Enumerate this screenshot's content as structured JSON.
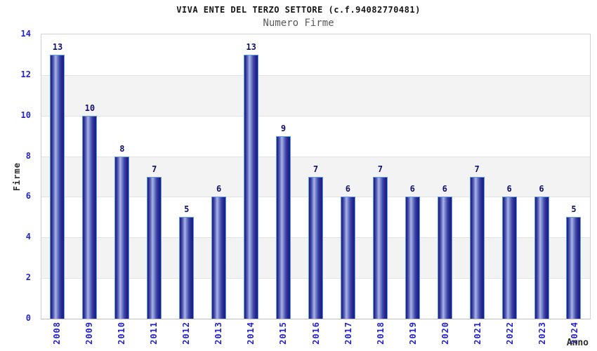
{
  "header": {
    "title": "VIVA ENTE DEL TERZO SETTORE (c.f.94082770481)",
    "subtitle": "Numero Firme"
  },
  "chart_data": {
    "type": "bar",
    "title": "VIVA ENTE DEL TERZO SETTORE (c.f.94082770481)",
    "subtitle": "Numero Firme",
    "categories": [
      "2008",
      "2009",
      "2010",
      "2011",
      "2012",
      "2013",
      "2014",
      "2015",
      "2016",
      "2017",
      "2018",
      "2019",
      "2020",
      "2021",
      "2022",
      "2023",
      "2024"
    ],
    "values": [
      13,
      10,
      8,
      7,
      5,
      6,
      13,
      9,
      7,
      6,
      7,
      6,
      6,
      7,
      6,
      6,
      5
    ],
    "xlabel": "Anno",
    "ylabel": "Firme",
    "ylim": [
      0,
      14
    ],
    "yticks": [
      0,
      2,
      4,
      6,
      8,
      10,
      12,
      14
    ],
    "grid": true,
    "legend_position": "none",
    "band_pattern": "alternating white/gray from bottom, white first"
  },
  "colors": {
    "axis_tick_label": "#2323cc",
    "value_label": "#10106e",
    "bar_dark": "#23238c",
    "bar_light": "#aab4e6",
    "bar_border": "#5b9be8",
    "band_gray": "#f3f3f3",
    "band_white": "#ffffff",
    "grid_line": "#e2e2e2",
    "plot_border": "#d2d2d2",
    "title_color": "#151515",
    "subtitle_color": "#585858",
    "axis_title_color": "#2e2e2e"
  }
}
